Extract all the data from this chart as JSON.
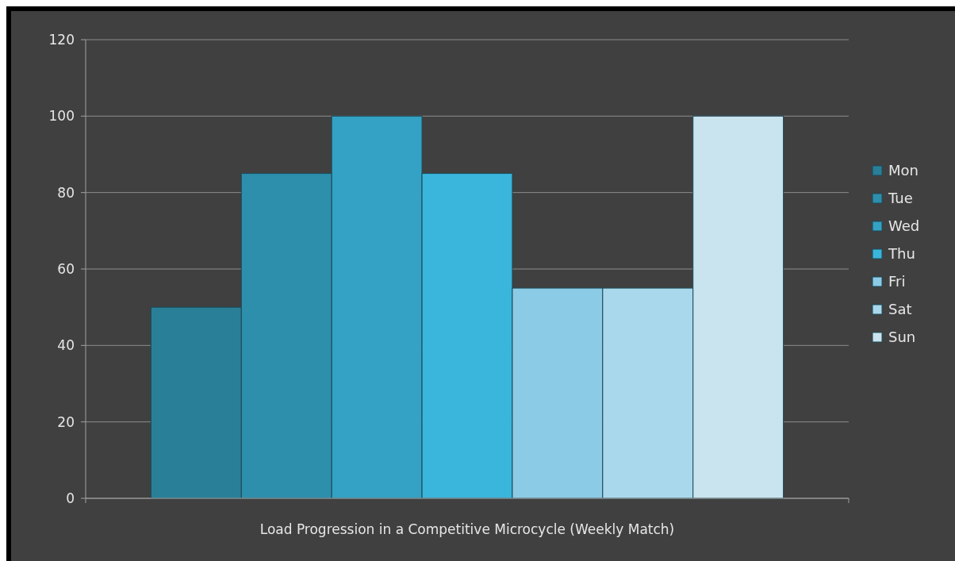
{
  "chart_data": {
    "type": "bar",
    "categories": [
      "Load Progression in a Competitive Microcycle (Weekly Match)"
    ],
    "series": [
      {
        "name": "Mon",
        "color": "#2a7f98",
        "values": [
          50
        ]
      },
      {
        "name": "Tue",
        "color": "#2d8fac",
        "values": [
          85
        ]
      },
      {
        "name": "Wed",
        "color": "#33a2c4",
        "values": [
          100
        ]
      },
      {
        "name": "Thu",
        "color": "#3ab5dc",
        "values": [
          85
        ]
      },
      {
        "name": "Fri",
        "color": "#8ccbe6",
        "values": [
          55
        ]
      },
      {
        "name": "Sat",
        "color": "#a9d8ec",
        "values": [
          55
        ]
      },
      {
        "name": "Sun",
        "color": "#c9e3ef",
        "values": [
          100
        ]
      }
    ],
    "ylim": [
      0,
      120
    ],
    "yticks": [
      0,
      20,
      40,
      60,
      80,
      100,
      120
    ],
    "grid": "y",
    "legend": "right"
  }
}
